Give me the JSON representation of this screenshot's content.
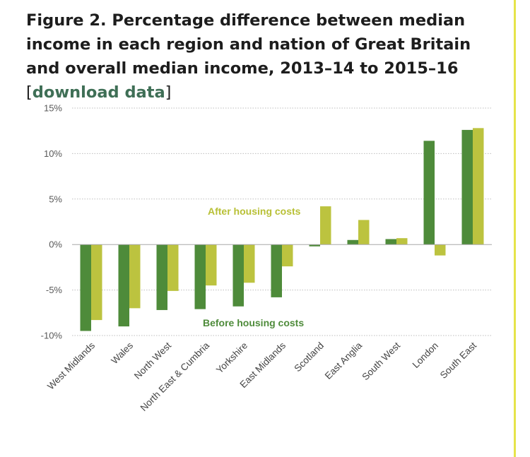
{
  "figure": {
    "title": "Figure 2. Percentage difference between median income in each region and nation of Great Britain and overall median income, 2013–14 to 2015–16",
    "bracket_open": "[",
    "link_text": "download data",
    "bracket_close": "]"
  },
  "colors": {
    "before": "#4e8b3a",
    "after": "#bcc33f",
    "after_label": "#b8c036",
    "before_label": "#4e8b3a",
    "grid": "#bdbdbd",
    "accent_rule": "#e6e44a"
  },
  "chart_data": {
    "type": "bar",
    "title": "Percentage difference between median income in each region and nation of Great Britain and overall median income, 2013–14 to 2015–16",
    "xlabel": "",
    "ylabel": "",
    "ylim": [
      -10,
      15
    ],
    "yticks": [
      15,
      10,
      5,
      0,
      -5,
      -10
    ],
    "ytick_labels": [
      "15%",
      "10%",
      "5%",
      "0%",
      "-5%",
      "-10%"
    ],
    "grid": true,
    "categories": [
      "West Midlands",
      "Wales",
      "North West",
      "North East & Cumbria",
      "Yorkshire",
      "East Midlands",
      "Scotland",
      "East Anglia",
      "South West",
      "London",
      "South East"
    ],
    "series": [
      {
        "name": "Before housing costs",
        "values": [
          -9.5,
          -9.0,
          -7.2,
          -7.1,
          -6.8,
          -5.8,
          -0.2,
          0.5,
          0.6,
          11.4,
          12.6
        ]
      },
      {
        "name": "After housing costs",
        "values": [
          -8.3,
          -7.0,
          -5.1,
          -4.5,
          -4.2,
          -2.4,
          4.2,
          2.7,
          0.7,
          -1.2,
          12.8
        ]
      }
    ],
    "annotations": [
      {
        "text": "After housing costs",
        "series": "After housing costs"
      },
      {
        "text": "Before housing costs",
        "series": "Before housing costs"
      }
    ]
  }
}
